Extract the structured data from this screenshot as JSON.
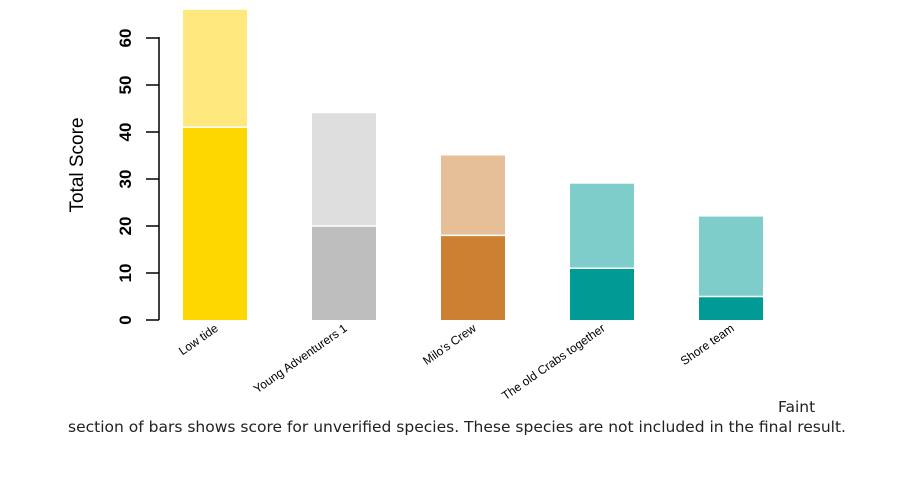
{
  "chart_data": {
    "type": "bar",
    "stacked": true,
    "ylabel": "Total Score",
    "ylim": [
      0,
      66
    ],
    "yticks": [
      0,
      10,
      20,
      30,
      40,
      50,
      60
    ],
    "categories": [
      "Low tide",
      "Young Adventurers 1",
      "Milo's Crew",
      "The old Crabs together",
      "Shore team"
    ],
    "series": [
      {
        "values": [
          41,
          20,
          18,
          11,
          5
        ],
        "colors": [
          "#FFD700",
          "#BEBEBE",
          "#CD7F32",
          "#009B95",
          "#009B95"
        ]
      },
      {
        "values": [
          25,
          24,
          17,
          18,
          17
        ],
        "colors": [
          "#FFE97F",
          "#DEDEDE",
          "#E6BF99",
          "#7FCDCA",
          "#7FCDCA"
        ]
      }
    ],
    "grid": false,
    "legend": "none"
  },
  "caption": "Faint section of bars shows score for unverified species. These species are not included in the final result."
}
